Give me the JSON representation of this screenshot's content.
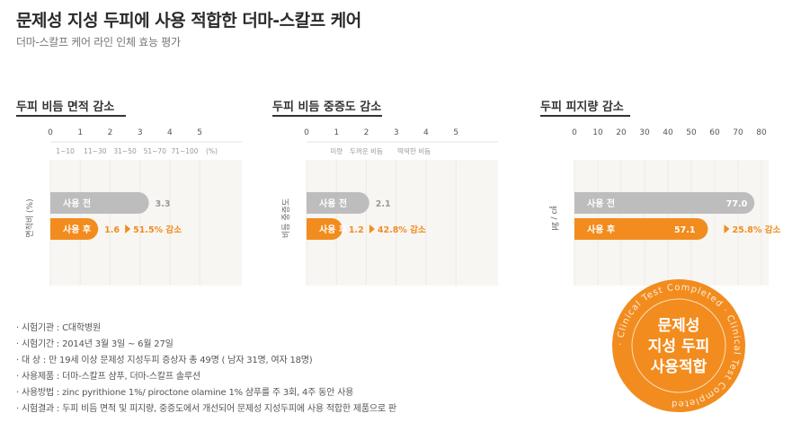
{
  "title": "문제성 지성 두피에 사용 적합한 더마-스칼프 케어",
  "subtitle": "더마-스칼프 케어 라인 인체 효능 평가",
  "colors": {
    "before": "#bdbdbd",
    "after": "#f28c1e",
    "accent": "#f28c1e",
    "grid": "#efe9e2",
    "bg": "#f8f6f3"
  },
  "chart_data": [
    {
      "type": "bar",
      "title": "두피 비듬 면적 감소",
      "ylabel": "면적비 (%)",
      "xlim": [
        0,
        5
      ],
      "xticks": [
        "0",
        "1",
        "2",
        "3",
        "4",
        "5"
      ],
      "sublabels": [
        "1~10",
        "11~30",
        "31~50",
        "51~70",
        "71~100",
        "(%)"
      ],
      "categories": [
        "사용 전",
        "사용 후"
      ],
      "values": [
        3.3,
        1.6
      ],
      "value_labels": [
        "3.3",
        "1.6"
      ],
      "reduction": "51.5% 감소"
    },
    {
      "type": "bar",
      "title": "두피 비듬 중증도 감소",
      "ylabel": "비듬 중증도",
      "xlim": [
        0,
        5
      ],
      "xticks": [
        "0",
        "1",
        "2",
        "3",
        "4",
        "5"
      ],
      "sublabels": [
        "미량",
        "두꺼운 비듬",
        "떡딱한 비듬"
      ],
      "categories": [
        "사용 전",
        "사용 후"
      ],
      "values": [
        2.1,
        1.2
      ],
      "value_labels": [
        "2.1",
        "1.2"
      ],
      "reduction": "42.8% 감소"
    },
    {
      "type": "bar",
      "title": "두피 피지량 감소",
      "ylabel": "㎍ / ㎠",
      "xlim": [
        0,
        80
      ],
      "xticks": [
        "0",
        "10",
        "20",
        "30",
        "40",
        "50",
        "60",
        "70",
        "80"
      ],
      "sublabels": [],
      "categories": [
        "사용 전",
        "사용 후"
      ],
      "values": [
        77.0,
        57.1
      ],
      "value_labels": [
        "77.0",
        "57.1"
      ],
      "reduction": "25.8% 감소"
    }
  ],
  "notes": [
    {
      "label": "· 시험기관 :",
      "text": "C대학병원"
    },
    {
      "label": "· 시험기간 :",
      "text": "2014년 3월 3일 ~ 6월 27일"
    },
    {
      "label": "· 대      상 :",
      "text": "만 19세 이상 문제성 지성두피 증상자 총 49명 ( 남자 31명, 여자 18명)"
    },
    {
      "label": "· 사용제품 :",
      "text": "더마-스칼프 샴푸, 더마-스칼프 솔루션"
    },
    {
      "label": "· 사용방법 :",
      "text": "zinc pyrithione 1%/ piroctone olamine 1% 샴푸를 주 3회, 4주 동안 사용"
    },
    {
      "label": "· 시험결과 :",
      "text": "두피 비듬 면적 및 피지량, 중증도에서 개선되어 문제성 지성두피에 사용 적합한 제품으로 판"
    }
  ],
  "stamp": {
    "ring_text": "· Clinical Test Completed · Clinical Test Completed",
    "line1": "문제성",
    "line2": "지성 두피",
    "line3": "사용적합"
  }
}
